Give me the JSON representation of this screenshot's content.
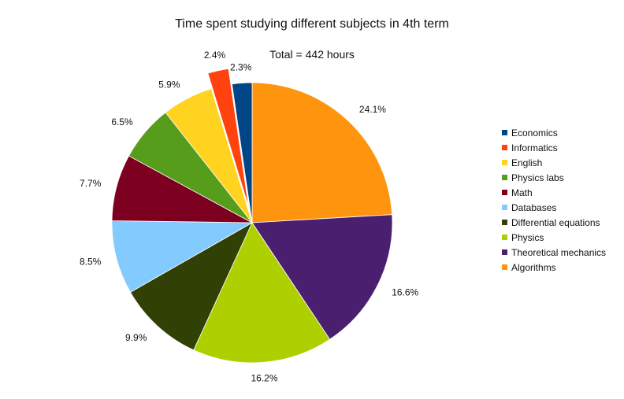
{
  "chart_data": {
    "type": "pie",
    "title": "Time spent studying different subjects in 4th term",
    "subtitle": "Total = 442 hours",
    "legend_position": "right",
    "slices": [
      {
        "name": "Algorithms",
        "value": 24.1,
        "label": "24.1%",
        "color": "#ff950e",
        "exploded": false
      },
      {
        "name": "Theoretical mechanics",
        "value": 16.6,
        "label": "16.6%",
        "color": "#4b1f6f",
        "exploded": false
      },
      {
        "name": "Physics",
        "value": 16.2,
        "label": "16.2%",
        "color": "#aecf00",
        "exploded": false
      },
      {
        "name": "Differential equations",
        "value": 9.9,
        "label": "9.9%",
        "color": "#314004",
        "exploded": false
      },
      {
        "name": "Databases",
        "value": 8.5,
        "label": "8.5%",
        "color": "#83caff",
        "exploded": false
      },
      {
        "name": "Math",
        "value": 7.7,
        "label": "7.7%",
        "color": "#7e0021",
        "exploded": false
      },
      {
        "name": "Physics labs",
        "value": 6.5,
        "label": "6.5%",
        "color": "#579d1c",
        "exploded": false
      },
      {
        "name": "English",
        "value": 5.9,
        "label": "5.9%",
        "color": "#ffd320",
        "exploded": false
      },
      {
        "name": "Informatics",
        "value": 2.4,
        "label": "2.4%",
        "color": "#ff420e",
        "exploded": true
      },
      {
        "name": "Economics",
        "value": 2.3,
        "label": "2.3%",
        "color": "#004586",
        "exploded": false
      }
    ],
    "legend_order": [
      "Economics",
      "Informatics",
      "English",
      "Physics labs",
      "Math",
      "Databases",
      "Differential equations",
      "Physics",
      "Theoretical mechanics",
      "Algorithms"
    ]
  }
}
